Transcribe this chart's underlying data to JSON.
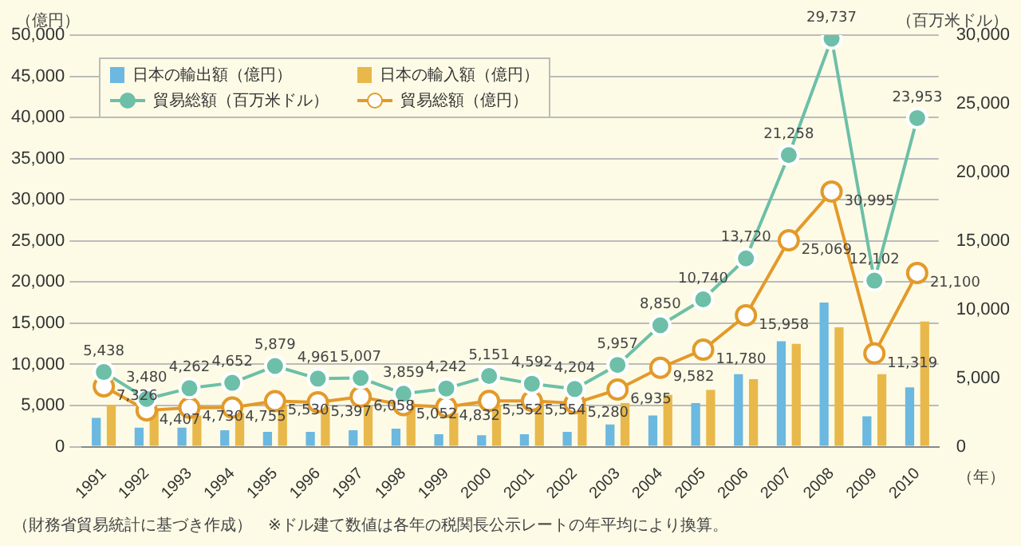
{
  "chart_data": {
    "type": "bar",
    "ylabel": "（億円）",
    "y2label": "（百万米ドル）",
    "xlabel": "（年）",
    "categories": [
      "1991",
      "1992",
      "1993",
      "1994",
      "1995",
      "1996",
      "1997",
      "1998",
      "1999",
      "2000",
      "2001",
      "2002",
      "2003",
      "2004",
      "2005",
      "2006",
      "2007",
      "2008",
      "2009",
      "2010"
    ],
    "series": [
      {
        "name": "日本の輸出額（億円）",
        "color": "#6bb8e0",
        "values": [
          3500,
          2300,
          2300,
          2000,
          1800,
          1800,
          2000,
          2200,
          1500,
          1400,
          1500,
          1800,
          2700,
          3800,
          5300,
          8800,
          12800,
          17500,
          3700,
          7200
        ]
      },
      {
        "name": "日本の輸入額（億円）",
        "color": "#e8b84a",
        "values": [
          5100,
          4400,
          3800,
          4100,
          5100,
          4800,
          5000,
          4800,
          4100,
          5100,
          5500,
          4800,
          5300,
          6300,
          6900,
          8200,
          12500,
          14500,
          8800,
          15200
        ]
      },
      {
        "name": "貿易総額（百万米ドル）",
        "type": "line",
        "axis": "y2",
        "color": "#6dbfa8",
        "values": [
          5438,
          3480,
          4262,
          4652,
          5879,
          4961,
          5007,
          3859,
          4242,
          5151,
          4592,
          4204,
          5957,
          8850,
          10740,
          13720,
          21258,
          29737,
          12102,
          23953
        ],
        "value_labels": [
          "5,438",
          "3,480",
          "4,262",
          "4,652",
          "5,879",
          "4,961",
          "5,007",
          "3,859",
          "4,242",
          "5,151",
          "4,592",
          "4,204",
          "5,957",
          "8,850",
          "10,740",
          "13,720",
          "21,258",
          "29,737",
          "12,102",
          "23,953"
        ]
      },
      {
        "name": "貿易総額（億円）",
        "type": "line",
        "color": "#e39a2a",
        "values": [
          7326,
          4407,
          4730,
          4755,
          5530,
          5397,
          6058,
          5052,
          4832,
          5552,
          5554,
          5280,
          6935,
          9582,
          11780,
          15958,
          25069,
          30995,
          11319,
          21100
        ],
        "value_labels": [
          "7,326",
          "4,407",
          "4,730",
          "4,755",
          "5,530",
          "5,397",
          "6,058",
          "5,052",
          "4,832",
          "5,552",
          "5,554",
          "5,280",
          "6,935",
          "9,582",
          "11,780",
          "15,958",
          "25,069",
          "30,995",
          "11,319",
          "21,100"
        ]
      }
    ],
    "ylim": [
      0,
      50000
    ],
    "yticks": [
      0,
      {
        "value": 5000,
        "label": "5,000"
      },
      {
        "value": 10000,
        "label": "10,000"
      },
      {
        "value": 15000,
        "label": "15,000"
      },
      {
        "value": 20000,
        "label": "20,000"
      },
      {
        "value": 25000,
        "label": "25,000"
      },
      {
        "value": 30000,
        "label": "30,000"
      },
      {
        "value": 35000,
        "label": "35,000"
      },
      {
        "value": 40000,
        "label": "40,000"
      },
      {
        "value": 45000,
        "label": "45,000"
      },
      {
        "value": 50000,
        "label": "50,000"
      }
    ],
    "y2lim": [
      0,
      30000
    ],
    "y2ticks": [
      0,
      {
        "value": 5000,
        "label": "5,000"
      },
      {
        "value": 10000,
        "label": "10,000"
      },
      {
        "value": 15000,
        "label": "15,000"
      },
      {
        "value": 20000,
        "label": "20,000"
      },
      {
        "value": 25000,
        "label": "25,000"
      },
      {
        "value": 30000,
        "label": "30,000"
      }
    ],
    "grid": "y",
    "legend": "top left",
    "marker": "circle",
    "annotations": [
      "（財務省貿易統計に基づき作成）　※ドル建て数値は各年の税関長公示レートの年平均により換算。"
    ]
  }
}
